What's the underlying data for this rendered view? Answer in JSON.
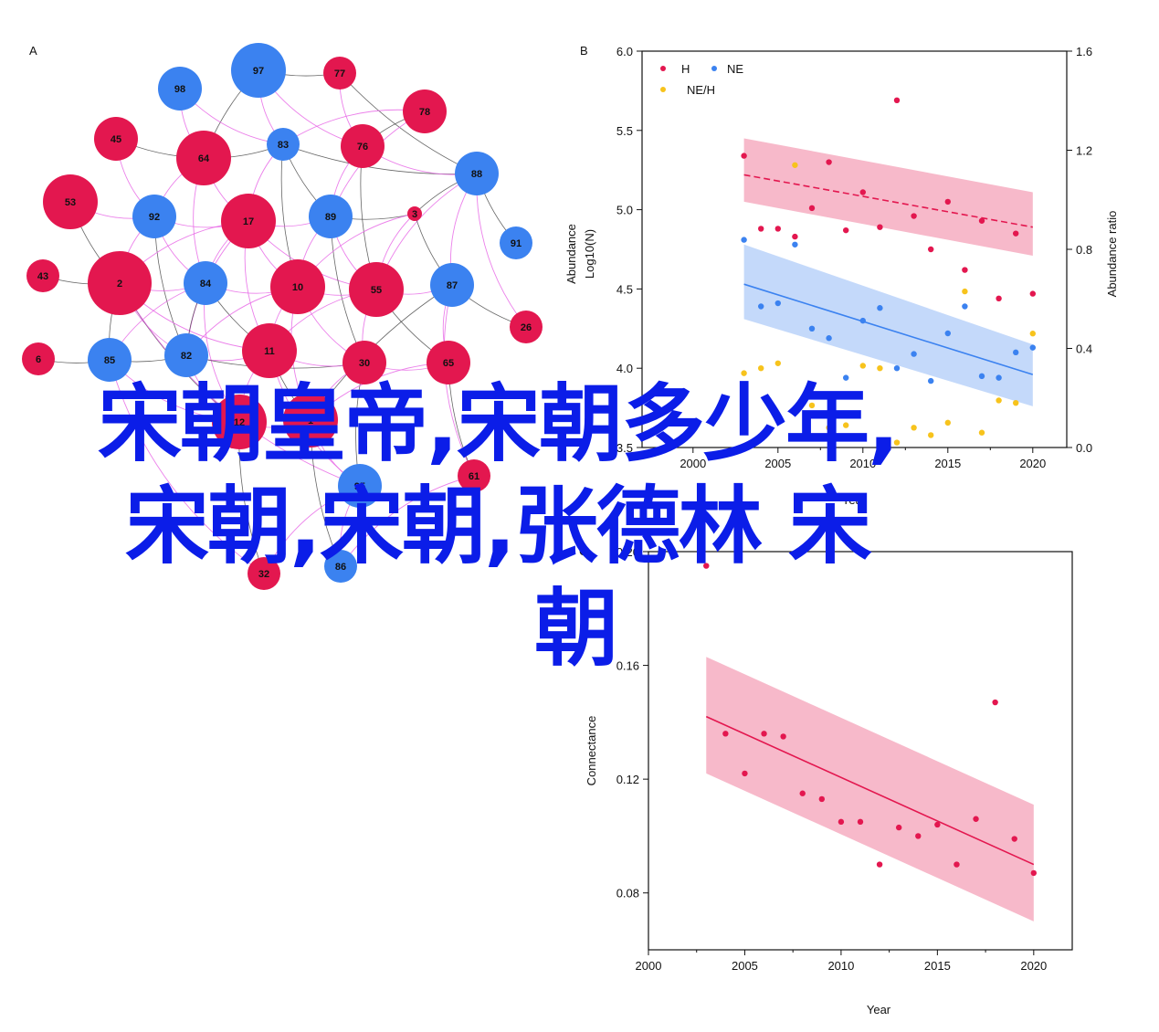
{
  "overlay": {
    "line1": "宋朝皇帝,宋朝多少年,",
    "line2": "宋朝,宋朝,张德林 宋",
    "line3": "朝"
  },
  "colors": {
    "red": "#e3174f",
    "blue": "#3b82f0",
    "yellow": "#f7c31c",
    "edge_pink": "#e86ae6",
    "edge_dark": "#333333",
    "node_light_blue": "#3b82f0"
  },
  "chart_data": [
    {
      "panel": "A",
      "type": "network",
      "nodes": [
        {
          "id": "97",
          "color": "blue",
          "size": 3
        },
        {
          "id": "77",
          "color": "red",
          "size": 1
        },
        {
          "id": "98",
          "color": "blue",
          "size": 2
        },
        {
          "id": "78",
          "color": "red",
          "size": 2
        },
        {
          "id": "45",
          "color": "red",
          "size": 2
        },
        {
          "id": "64",
          "color": "red",
          "size": 3
        },
        {
          "id": "83",
          "color": "blue",
          "size": 1
        },
        {
          "id": "76",
          "color": "red",
          "size": 2
        },
        {
          "id": "88",
          "color": "blue",
          "size": 2
        },
        {
          "id": "53",
          "color": "red",
          "size": 3
        },
        {
          "id": "92",
          "color": "blue",
          "size": 2
        },
        {
          "id": "17",
          "color": "red",
          "size": 3
        },
        {
          "id": "89",
          "color": "blue",
          "size": 2
        },
        {
          "id": "3",
          "color": "red",
          "size": 0
        },
        {
          "id": "91",
          "color": "blue",
          "size": 1
        },
        {
          "id": "43",
          "color": "red",
          "size": 1
        },
        {
          "id": "2",
          "color": "red",
          "size": 4
        },
        {
          "id": "84",
          "color": "blue",
          "size": 2
        },
        {
          "id": "10",
          "color": "red",
          "size": 3
        },
        {
          "id": "55",
          "color": "red",
          "size": 3
        },
        {
          "id": "87",
          "color": "blue",
          "size": 2
        },
        {
          "id": "26",
          "color": "red",
          "size": 1
        },
        {
          "id": "6",
          "color": "red",
          "size": 1
        },
        {
          "id": "85",
          "color": "blue",
          "size": 2
        },
        {
          "id": "82",
          "color": "blue",
          "size": 2
        },
        {
          "id": "11",
          "color": "red",
          "size": 3
        },
        {
          "id": "30",
          "color": "red",
          "size": 2
        },
        {
          "id": "65",
          "color": "red",
          "size": 2
        },
        {
          "id": "12",
          "color": "red",
          "size": 3
        },
        {
          "id": "1",
          "color": "red",
          "size": 3
        },
        {
          "id": "61",
          "color": "red",
          "size": 1
        },
        {
          "id": "95",
          "color": "blue",
          "size": 2
        },
        {
          "id": "32",
          "color": "red",
          "size": 1
        },
        {
          "id": "86",
          "color": "blue",
          "size": 1
        }
      ],
      "edges": [
        [
          "97",
          "77",
          "dark"
        ],
        [
          "97",
          "83",
          "pink"
        ],
        [
          "97",
          "64",
          "dark"
        ],
        [
          "97",
          "76",
          "pink"
        ],
        [
          "77",
          "76",
          "pink"
        ],
        [
          "77",
          "88",
          "dark"
        ],
        [
          "98",
          "64",
          "pink"
        ],
        [
          "98",
          "83",
          "pink"
        ],
        [
          "78",
          "83",
          "pink"
        ],
        [
          "78",
          "76",
          "dark"
        ],
        [
          "78",
          "89",
          "pink"
        ],
        [
          "45",
          "64",
          "dark"
        ],
        [
          "45",
          "92",
          "pink"
        ],
        [
          "64",
          "83",
          "dark"
        ],
        [
          "64",
          "17",
          "pink"
        ],
        [
          "64",
          "92",
          "pink"
        ],
        [
          "64",
          "84",
          "pink"
        ],
        [
          "83",
          "88",
          "dark"
        ],
        [
          "83",
          "17",
          "pink"
        ],
        [
          "83",
          "89",
          "dark"
        ],
        [
          "83",
          "10",
          "dark"
        ],
        [
          "76",
          "88",
          "pink"
        ],
        [
          "76",
          "89",
          "pink"
        ],
        [
          "76",
          "55",
          "dark"
        ],
        [
          "88",
          "3",
          "dark"
        ],
        [
          "88",
          "87",
          "pink"
        ],
        [
          "88",
          "55",
          "pink"
        ],
        [
          "88",
          "91",
          "dark"
        ],
        [
          "88",
          "26",
          "pink"
        ],
        [
          "53",
          "92",
          "pink"
        ],
        [
          "53",
          "2",
          "dark"
        ],
        [
          "92",
          "17",
          "pink"
        ],
        [
          "92",
          "84",
          "pink"
        ],
        [
          "92",
          "2",
          "pink"
        ],
        [
          "92",
          "82",
          "dark"
        ],
        [
          "17",
          "89",
          "pink"
        ],
        [
          "17",
          "84",
          "pink"
        ],
        [
          "17",
          "10",
          "pink"
        ],
        [
          "17",
          "11",
          "pink"
        ],
        [
          "17",
          "55",
          "pink"
        ],
        [
          "17",
          "2",
          "pink"
        ],
        [
          "17",
          "82",
          "pink"
        ],
        [
          "89",
          "3",
          "dark"
        ],
        [
          "89",
          "10",
          "pink"
        ],
        [
          "89",
          "55",
          "pink"
        ],
        [
          "89",
          "30",
          "dark"
        ],
        [
          "3",
          "55",
          "pink"
        ],
        [
          "3",
          "87",
          "dark"
        ],
        [
          "3",
          "10",
          "pink"
        ],
        [
          "43",
          "2",
          "dark"
        ],
        [
          "2",
          "84",
          "pink"
        ],
        [
          "2",
          "85",
          "dark"
        ],
        [
          "2",
          "82",
          "pink"
        ],
        [
          "2",
          "11",
          "pink"
        ],
        [
          "2",
          "12",
          "dark"
        ],
        [
          "2",
          "95",
          "pink"
        ],
        [
          "84",
          "10",
          "pink"
        ],
        [
          "84",
          "11",
          "dark"
        ],
        [
          "84",
          "85",
          "pink"
        ],
        [
          "84",
          "82",
          "dark"
        ],
        [
          "84",
          "12",
          "pink"
        ],
        [
          "10",
          "55",
          "pink"
        ],
        [
          "10",
          "11",
          "pink"
        ],
        [
          "10",
          "30",
          "pink"
        ],
        [
          "10",
          "1",
          "pink"
        ],
        [
          "10",
          "82",
          "pink"
        ],
        [
          "55",
          "87",
          "pink"
        ],
        [
          "55",
          "30",
          "pink"
        ],
        [
          "55",
          "65",
          "dark"
        ],
        [
          "55",
          "11",
          "pink"
        ],
        [
          "87",
          "65",
          "pink"
        ],
        [
          "87",
          "26",
          "dark"
        ],
        [
          "87",
          "1",
          "dark"
        ],
        [
          "87",
          "61",
          "pink"
        ],
        [
          "6",
          "85",
          "dark"
        ],
        [
          "85",
          "82",
          "dark"
        ],
        [
          "85",
          "12",
          "pink"
        ],
        [
          "85",
          "32",
          "pink"
        ],
        [
          "82",
          "11",
          "pink"
        ],
        [
          "82",
          "30",
          "dark"
        ],
        [
          "82",
          "12",
          "pink"
        ],
        [
          "11",
          "30",
          "pink"
        ],
        [
          "11",
          "1",
          "dark"
        ],
        [
          "11",
          "95",
          "pink"
        ],
        [
          "11",
          "12",
          "pink"
        ],
        [
          "30",
          "65",
          "pink"
        ],
        [
          "30",
          "1",
          "pink"
        ],
        [
          "30",
          "95",
          "dark"
        ],
        [
          "65",
          "61",
          "dark"
        ],
        [
          "65",
          "1",
          "pink"
        ],
        [
          "12",
          "1",
          "pink"
        ],
        [
          "12",
          "32",
          "dark"
        ],
        [
          "1",
          "95",
          "pink"
        ],
        [
          "1",
          "86",
          "dark"
        ],
        [
          "95",
          "86",
          "pink"
        ],
        [
          "95",
          "32",
          "pink"
        ],
        [
          "61",
          "86",
          "pink"
        ]
      ]
    },
    {
      "panel": "B",
      "type": "scatter",
      "xlabel": "Year",
      "ylabel_left": "Abundance Log10(N)",
      "ylabel_right": "Abundance ratio",
      "xlim": [
        1997,
        2022
      ],
      "ylim": [
        3.5,
        6.0
      ],
      "ylim_right": [
        0.0,
        1.6
      ],
      "xticks": [
        2000,
        2005,
        2010,
        2015,
        2020
      ],
      "yticks": [
        3.5,
        4.0,
        4.5,
        5.0,
        5.5,
        6.0
      ],
      "yticks_right": [
        0.0,
        0.4,
        0.8,
        1.2,
        1.6
      ],
      "legend_position": "top-left",
      "series": [
        {
          "name": "H",
          "color": "red",
          "axis": "left",
          "x": [
            2003,
            2004,
            2005,
            2006,
            2007,
            2008,
            2009,
            2010,
            2011,
            2012,
            2013,
            2014,
            2015,
            2016,
            2017,
            2018,
            2019,
            2020
          ],
          "y": [
            5.34,
            4.88,
            4.88,
            4.83,
            5.01,
            5.3,
            4.87,
            5.11,
            4.89,
            5.69,
            4.96,
            4.75,
            5.05,
            4.62,
            4.93,
            4.44,
            4.85,
            4.47
          ],
          "fit": {
            "x0": 2003,
            "y0": 5.22,
            "x1": 2020,
            "y1": 4.89,
            "band_lower": [
              5.05,
              4.71
            ],
            "band_upper": [
              5.45,
              5.11
            ]
          }
        },
        {
          "name": "NE",
          "color": "blue",
          "axis": "left",
          "x": [
            2003,
            2004,
            2005,
            2006,
            2007,
            2008,
            2009,
            2010,
            2011,
            2012,
            2013,
            2014,
            2015,
            2016,
            2017,
            2018,
            2019,
            2020
          ],
          "y": [
            4.81,
            4.39,
            4.41,
            4.78,
            4.25,
            4.19,
            3.94,
            4.3,
            4.38,
            4.0,
            4.09,
            3.92,
            4.22,
            4.39,
            3.95,
            3.94,
            4.1,
            4.13
          ],
          "fit": {
            "x0": 2003,
            "y0": 4.53,
            "x1": 2020,
            "y1": 3.96,
            "band_lower": [
              4.31,
              3.76
            ],
            "band_upper": [
              4.78,
              4.15
            ]
          }
        },
        {
          "name": "NE/H",
          "color": "yellow",
          "axis": "right",
          "x": [
            2003,
            2004,
            2005,
            2006,
            2007,
            2008,
            2009,
            2010,
            2011,
            2012,
            2013,
            2014,
            2015,
            2016,
            2017,
            2018,
            2019,
            2020
          ],
          "y": [
            0.3,
            0.32,
            0.34,
            1.14,
            0.17,
            0.08,
            0.09,
            0.33,
            0.32,
            0.02,
            0.08,
            0.05,
            0.1,
            0.63,
            0.06,
            0.19,
            0.18,
            0.46
          ]
        }
      ]
    },
    {
      "panel": "C",
      "type": "scatter",
      "xlabel": "Year",
      "ylabel": "Connectance",
      "xlim": [
        2000,
        2022
      ],
      "ylim": [
        0.06,
        0.2
      ],
      "xticks": [
        2000,
        2005,
        2010,
        2015,
        2020
      ],
      "yticks": [
        0.08,
        0.12,
        0.16,
        0.2
      ],
      "ytick_labels": [
        "0.08",
        "0.12",
        "0.16",
        "0.20"
      ],
      "series": [
        {
          "color": "red",
          "x": [
            2003,
            2004,
            2005,
            2006,
            2007,
            2008,
            2009,
            2010,
            2011,
            2012,
            2013,
            2014,
            2015,
            2016,
            2017,
            2018,
            2019,
            2020
          ],
          "y": [
            0.195,
            0.136,
            0.122,
            0.136,
            0.135,
            0.115,
            0.113,
            0.105,
            0.105,
            0.09,
            0.103,
            0.1,
            0.104,
            0.09,
            0.106,
            0.147,
            0.099,
            0.087
          ],
          "fit": {
            "x0": 2003,
            "y0": 0.142,
            "x1": 2020,
            "y1": 0.09,
            "band_lower": [
              0.122,
              0.07
            ],
            "band_upper": [
              0.163,
              0.111
            ]
          }
        }
      ]
    }
  ],
  "labels": {
    "panel_a": "A",
    "panel_b": "B",
    "panel_c": "C",
    "legend_h": "H",
    "legend_ne": "NE",
    "legend_neh": "NE/H",
    "b_ylabel_top": "Abundance",
    "b_ylabel_bottom": "Log10(N)",
    "b_yright": "Abundance ratio",
    "b_xlabel": "Year",
    "c_ylabel": "Connectance",
    "c_xlabel": "Year"
  }
}
